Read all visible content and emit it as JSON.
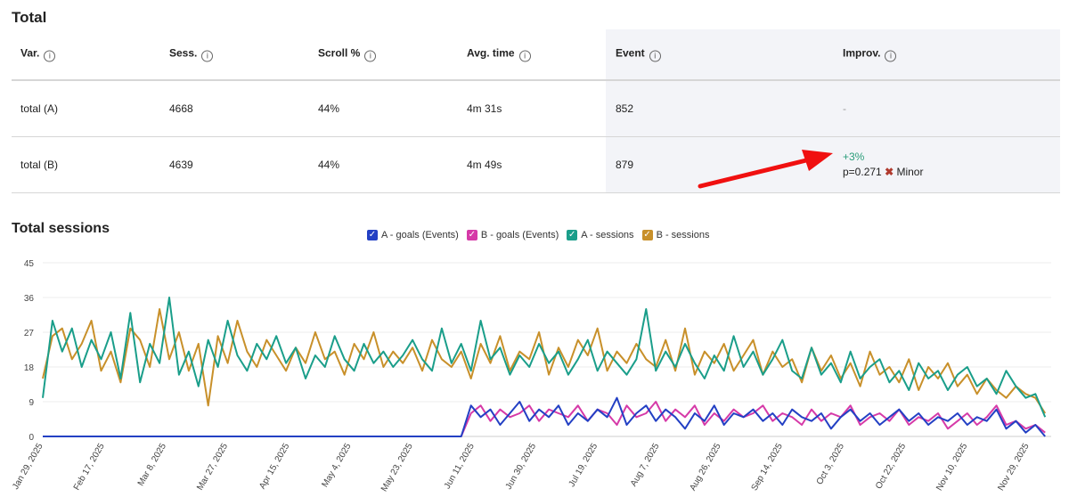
{
  "section_title": "Total",
  "table": {
    "headers": [
      "Var.",
      "Sess.",
      "Scroll %",
      "Avg. time",
      "Event",
      "Improv."
    ],
    "rows": [
      {
        "var": "total (A)",
        "sess": "4668",
        "scroll": "44%",
        "avg_time": "4m 31s",
        "event": "852",
        "improv": "-",
        "p": "",
        "verdict": ""
      },
      {
        "var": "total (B)",
        "sess": "4639",
        "scroll": "44%",
        "avg_time": "4m 49s",
        "event": "879",
        "improv": "+3%",
        "p": "p=0.271",
        "verdict": "Minor"
      }
    ]
  },
  "chart_title": "Total sessions",
  "colors": {
    "a_goals": "#2340c4",
    "b_goals": "#d63aa8",
    "a_sessions": "#1a9e8a",
    "b_sessions": "#c8902a",
    "arrow": "#f01010"
  },
  "chart_data": {
    "type": "line",
    "ylim": [
      0,
      45
    ],
    "yticks": [
      0,
      9,
      18,
      27,
      36,
      45
    ],
    "grid": true,
    "legend_placement": "top-center",
    "xtick_labels": [
      "Jan 29, 2025",
      "Feb 17, 2025",
      "Mar 8, 2025",
      "Mar 27, 2025",
      "Apr 15, 2025",
      "May 4, 2025",
      "May 23, 2025",
      "Jun 11, 2025",
      "Jun 30, 2025",
      "Jul 19, 2025",
      "Aug 7, 2025",
      "Aug 26, 2025",
      "Sep 14, 2025",
      "Oct 3, 2025",
      "Oct 22, 2025",
      "Nov 10, 2025",
      "Nov 29, 2025"
    ],
    "x": [
      "2025-01-29",
      "2025-02-01",
      "2025-02-04",
      "2025-02-07",
      "2025-02-10",
      "2025-02-13",
      "2025-02-16",
      "2025-02-19",
      "2025-02-22",
      "2025-02-25",
      "2025-02-28",
      "2025-03-03",
      "2025-03-06",
      "2025-03-09",
      "2025-03-12",
      "2025-03-15",
      "2025-03-18",
      "2025-03-21",
      "2025-03-24",
      "2025-03-27",
      "2025-03-30",
      "2025-04-02",
      "2025-04-05",
      "2025-04-08",
      "2025-04-11",
      "2025-04-14",
      "2025-04-17",
      "2025-04-20",
      "2025-04-23",
      "2025-04-26",
      "2025-04-29",
      "2025-05-02",
      "2025-05-05",
      "2025-05-08",
      "2025-05-11",
      "2025-05-14",
      "2025-05-17",
      "2025-05-20",
      "2025-05-23",
      "2025-05-26",
      "2025-05-29",
      "2025-06-01",
      "2025-06-04",
      "2025-06-07",
      "2025-06-10",
      "2025-06-13",
      "2025-06-16",
      "2025-06-19",
      "2025-06-22",
      "2025-06-25",
      "2025-06-28",
      "2025-07-01",
      "2025-07-04",
      "2025-07-07",
      "2025-07-10",
      "2025-07-13",
      "2025-07-16",
      "2025-07-19",
      "2025-07-22",
      "2025-07-25",
      "2025-07-28",
      "2025-07-31",
      "2025-08-03",
      "2025-08-06",
      "2025-08-09",
      "2025-08-12",
      "2025-08-15",
      "2025-08-18",
      "2025-08-21",
      "2025-08-24",
      "2025-08-27",
      "2025-08-30",
      "2025-09-02",
      "2025-09-05",
      "2025-09-08",
      "2025-09-11",
      "2025-09-14",
      "2025-09-17",
      "2025-09-20",
      "2025-09-23",
      "2025-09-26",
      "2025-09-29",
      "2025-10-02",
      "2025-10-05",
      "2025-10-08",
      "2025-10-11",
      "2025-10-14",
      "2025-10-17",
      "2025-10-20",
      "2025-10-23",
      "2025-10-26",
      "2025-10-29",
      "2025-11-01",
      "2025-11-04",
      "2025-11-07",
      "2025-11-10",
      "2025-11-13",
      "2025-11-16",
      "2025-11-19",
      "2025-11-22",
      "2025-11-25",
      "2025-11-28",
      "2025-12-01",
      "2025-12-04"
    ],
    "series": [
      {
        "name": "A - goals (Events)",
        "color_key": "a_goals",
        "values": [
          0,
          0,
          0,
          0,
          0,
          0,
          0,
          0,
          0,
          0,
          0,
          0,
          0,
          0,
          0,
          0,
          0,
          0,
          0,
          0,
          0,
          0,
          0,
          0,
          0,
          0,
          0,
          0,
          0,
          0,
          0,
          0,
          0,
          0,
          0,
          0,
          0,
          0,
          0,
          0,
          0,
          0,
          0,
          0,
          8,
          5,
          7,
          3,
          6,
          9,
          4,
          7,
          5,
          8,
          3,
          6,
          4,
          7,
          5,
          10,
          3,
          6,
          8,
          4,
          7,
          5,
          2,
          6,
          4,
          8,
          3,
          6,
          5,
          7,
          4,
          6,
          3,
          7,
          5,
          4,
          6,
          2,
          5,
          7,
          4,
          6,
          3,
          5,
          7,
          4,
          6,
          3,
          5,
          4,
          6,
          3,
          5,
          4,
          7,
          2,
          4,
          1,
          3,
          0
        ]
      },
      {
        "name": "B - goals (Events)",
        "color_key": "b_goals",
        "values": [
          0,
          0,
          0,
          0,
          0,
          0,
          0,
          0,
          0,
          0,
          0,
          0,
          0,
          0,
          0,
          0,
          0,
          0,
          0,
          0,
          0,
          0,
          0,
          0,
          0,
          0,
          0,
          0,
          0,
          0,
          0,
          0,
          0,
          0,
          0,
          0,
          0,
          0,
          0,
          0,
          0,
          0,
          0,
          0,
          6,
          8,
          4,
          7,
          5,
          6,
          8,
          4,
          7,
          6,
          5,
          8,
          4,
          7,
          6,
          3,
          8,
          5,
          6,
          9,
          4,
          7,
          5,
          8,
          3,
          6,
          4,
          7,
          5,
          6,
          8,
          4,
          6,
          5,
          3,
          7,
          4,
          6,
          5,
          8,
          3,
          5,
          6,
          4,
          7,
          3,
          5,
          4,
          6,
          2,
          4,
          6,
          3,
          5,
          8,
          3,
          4,
          2,
          3,
          1
        ]
      },
      {
        "name": "A - sessions",
        "color_key": "a_sessions",
        "values": [
          10,
          30,
          22,
          28,
          18,
          25,
          20,
          27,
          15,
          32,
          14,
          24,
          19,
          36,
          16,
          22,
          13,
          25,
          18,
          30,
          21,
          17,
          24,
          20,
          26,
          19,
          23,
          15,
          21,
          18,
          26,
          20,
          17,
          24,
          19,
          22,
          18,
          21,
          25,
          20,
          17,
          28,
          19,
          24,
          17,
          30,
          20,
          23,
          16,
          21,
          18,
          24,
          19,
          22,
          16,
          20,
          25,
          17,
          22,
          19,
          16,
          20,
          33,
          17,
          22,
          18,
          24,
          19,
          15,
          21,
          17,
          26,
          18,
          22,
          16,
          20,
          25,
          17,
          15,
          23,
          16,
          19,
          14,
          22,
          15,
          18,
          20,
          14,
          17,
          12,
          19,
          15,
          17,
          12,
          16,
          18,
          13,
          15,
          11,
          17,
          13,
          10,
          11,
          5
        ]
      },
      {
        "name": "B - sessions",
        "color_key": "b_sessions",
        "values": [
          15,
          26,
          28,
          20,
          24,
          30,
          17,
          22,
          14,
          28,
          25,
          18,
          33,
          20,
          27,
          17,
          24,
          8,
          26,
          19,
          30,
          22,
          18,
          25,
          21,
          17,
          23,
          19,
          27,
          20,
          22,
          16,
          24,
          20,
          27,
          18,
          22,
          19,
          23,
          17,
          25,
          20,
          18,
          22,
          15,
          24,
          19,
          26,
          17,
          22,
          20,
          27,
          16,
          23,
          18,
          25,
          21,
          28,
          17,
          22,
          19,
          24,
          20,
          18,
          25,
          17,
          28,
          16,
          22,
          19,
          24,
          17,
          21,
          25,
          16,
          22,
          18,
          20,
          14,
          23,
          17,
          21,
          15,
          19,
          13,
          22,
          16,
          18,
          14,
          20,
          12,
          18,
          15,
          19,
          13,
          16,
          11,
          15,
          12,
          10,
          13,
          11,
          10,
          6
        ]
      }
    ]
  }
}
